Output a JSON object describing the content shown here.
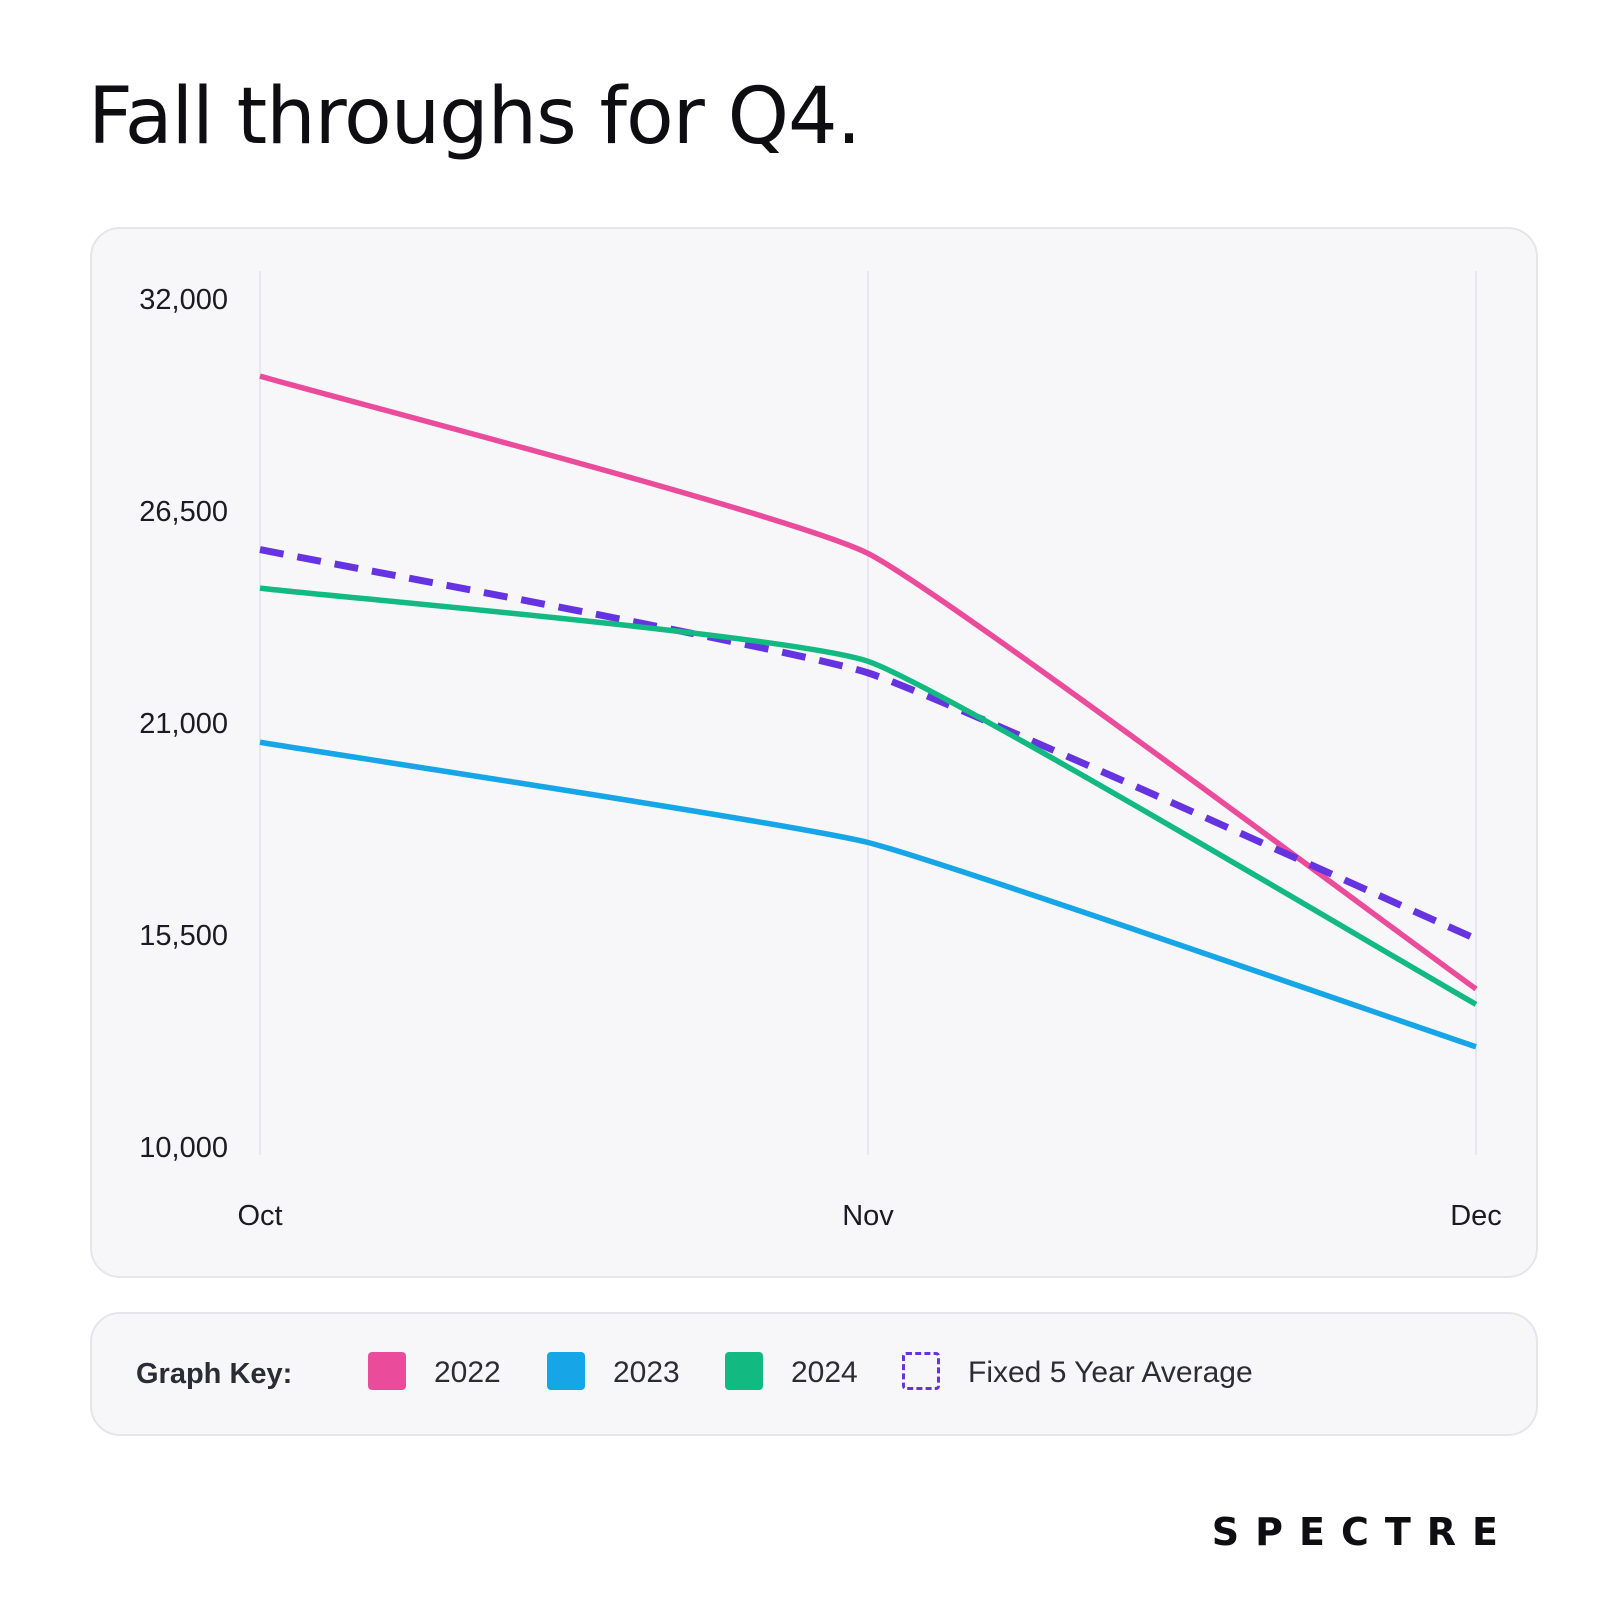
{
  "title": "Fall throughs for Q4.",
  "legend": {
    "title": "Graph Key:",
    "items": [
      {
        "label": "2022",
        "color": "#ea4c9b",
        "style": "solid"
      },
      {
        "label": "2023",
        "color": "#16a5e6",
        "style": "solid"
      },
      {
        "label": "2024",
        "color": "#12b981",
        "style": "solid"
      },
      {
        "label": "Fixed 5 Year Average",
        "color": "#6633e0",
        "style": "dashed"
      }
    ]
  },
  "logo": "SPECTRE",
  "chart_data": {
    "type": "line",
    "title": "Fall throughs for Q4.",
    "categories": [
      "Oct",
      "Nov",
      "Dec"
    ],
    "ylim": [
      10000,
      32000
    ],
    "yticks": [
      10000,
      15500,
      21000,
      26500,
      32000
    ],
    "ytick_labels": [
      "10,000",
      "15,500",
      "21,000",
      "26,500",
      "32,000"
    ],
    "grid": "vertical",
    "legend_placement": "bottom",
    "series": [
      {
        "name": "2022",
        "values": [
          30000,
          25400,
          14100
        ],
        "color": "#ea4c9b",
        "style": "solid"
      },
      {
        "name": "2023",
        "values": [
          20500,
          17900,
          12600
        ],
        "color": "#16a5e6",
        "style": "solid"
      },
      {
        "name": "2024",
        "values": [
          24500,
          22600,
          13700
        ],
        "color": "#12b981",
        "style": "solid"
      },
      {
        "name": "Fixed 5 Year Average",
        "values": [
          25500,
          22300,
          15400
        ],
        "color": "#6633e0",
        "style": "dashed"
      }
    ]
  }
}
